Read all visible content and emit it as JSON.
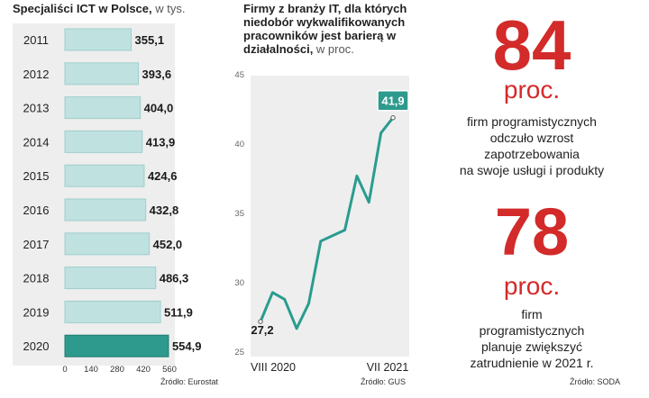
{
  "left_chart_title": {
    "bold": "Specjaliści ICT w Polsce,",
    "unit": " w tys."
  },
  "left_source": "Źródło: Eurostat",
  "mid_chart_title": {
    "bold": "Firmy z branży IT, dla których niedobór  wykwalifikowanych pracowników jest barierą w działalności,",
    "unit": " w proc."
  },
  "mid_source": "Źródło: GUS",
  "right_source": "Źródło: SODA",
  "stat1": {
    "number": "84",
    "unit": "proc.",
    "lines": [
      "firm programistycznych",
      "odczuło wzrost",
      "zapotrzebowania",
      "na swoje usługi i produkty"
    ]
  },
  "stat2": {
    "number": "78",
    "unit": "proc.",
    "lines": [
      "firm",
      "programistycznych",
      "planuje zwiększyć",
      "zatrudnienie w 2021 r."
    ]
  },
  "colors": {
    "accent_red": "#d32a2a",
    "bar_light": "#bfe1df",
    "bar_dark": "#2e9a8d",
    "line": "#2a9c8f",
    "panel_bg": "#eeeeee"
  },
  "chart_data": [
    {
      "type": "bar",
      "orientation": "horizontal",
      "title": "Specjaliści ICT w Polsce, w tys.",
      "categories": [
        "2011",
        "2012",
        "2013",
        "2014",
        "2015",
        "2016",
        "2017",
        "2018",
        "2019",
        "2020"
      ],
      "values": [
        355.1,
        393.6,
        404.0,
        413.9,
        424.6,
        432.8,
        452.0,
        486.3,
        511.9,
        554.9
      ],
      "value_labels": [
        "355,1",
        "393,6",
        "404,0",
        "413,9",
        "424,6",
        "432,8",
        "452,0",
        "486,3",
        "511,9",
        "554,9"
      ],
      "highlight_index": 9,
      "xlim": [
        0,
        560
      ],
      "xticks": [
        0,
        140,
        280,
        420,
        560
      ],
      "xtick_labels": [
        "0",
        "140",
        "280",
        "420",
        "560"
      ]
    },
    {
      "type": "line",
      "title": "Firmy z branży IT, dla których niedobór wykwalifikowanych pracowników jest barierą w działalności, w proc.",
      "x": [
        0,
        1,
        2,
        3,
        4,
        5,
        6,
        7,
        8,
        9,
        10,
        11
      ],
      "y": [
        27.2,
        29.3,
        28.8,
        26.7,
        28.5,
        33.0,
        33.4,
        33.8,
        37.7,
        35.8,
        40.8,
        41.9
      ],
      "xlabels": [
        "VIII 2020",
        "VII 2021"
      ],
      "ylim": [
        25,
        45
      ],
      "yticks": [
        25,
        30,
        35,
        40,
        45
      ],
      "first_label": "27,2",
      "last_label": "41,9"
    }
  ]
}
